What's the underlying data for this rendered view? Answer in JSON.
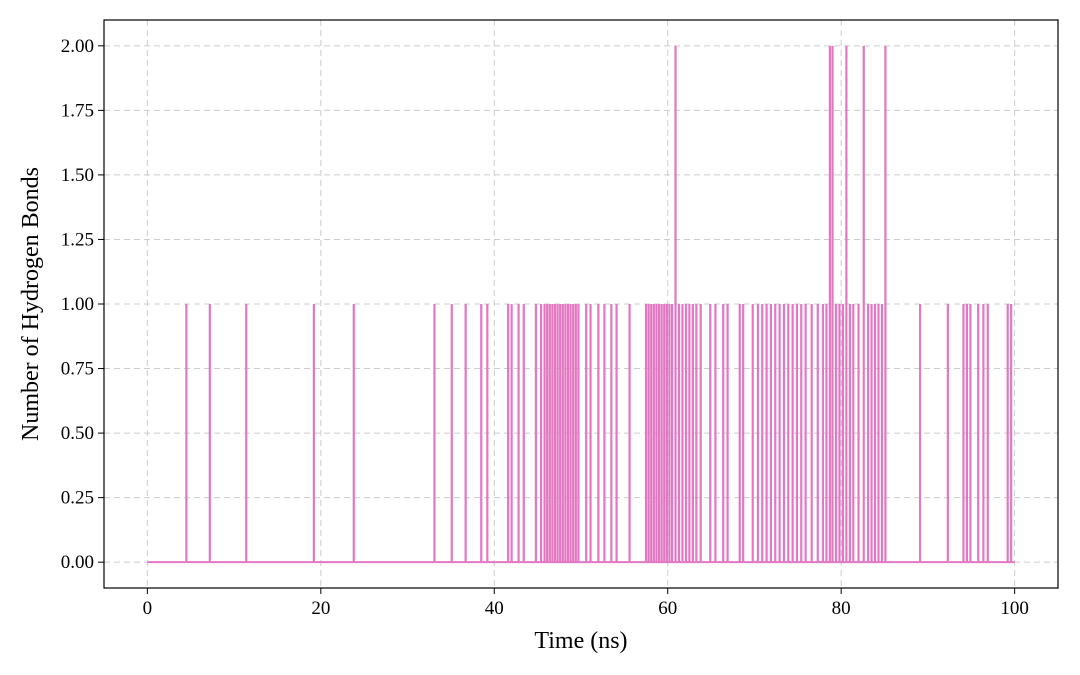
{
  "chart_data": {
    "type": "line",
    "title": "",
    "xlabel": "Time (ns)",
    "ylabel": "Number of Hydrogen Bonds",
    "xlim": [
      -5,
      105
    ],
    "ylim": [
      -0.1,
      2.1
    ],
    "x_ticks": [
      0,
      20,
      40,
      60,
      80,
      100
    ],
    "x_tick_labels": [
      "0",
      "20",
      "40",
      "60",
      "80",
      "100"
    ],
    "y_ticks": [
      0,
      0.25,
      0.5,
      0.75,
      1.0,
      1.25,
      1.5,
      1.75,
      2.0
    ],
    "y_tick_labels": [
      "0.00",
      "0.25",
      "0.50",
      "0.75",
      "1.00",
      "1.25",
      "1.50",
      "1.75",
      "2.00"
    ],
    "grid": true,
    "grid_style": "dashed",
    "line_color": "#e377c2",
    "series": [
      {
        "time_range": [
          0,
          100
        ],
        "baseline": 0,
        "events": [
          {
            "x": 4.5,
            "y": 1
          },
          {
            "x": 7.2,
            "y": 1
          },
          {
            "x": 11.4,
            "y": 1
          },
          {
            "x": 19.2,
            "y": 1
          },
          {
            "x": 23.8,
            "y": 1
          },
          {
            "x": 33.1,
            "y": 1
          },
          {
            "x": 35.1,
            "y": 1
          },
          {
            "x": 36.7,
            "y": 1
          },
          {
            "x": 38.5,
            "y": 1
          },
          {
            "x": 39.2,
            "y": 1
          },
          {
            "x": 41.6,
            "y": 1
          },
          {
            "x": 42.0,
            "y": 1
          },
          {
            "x": 42.8,
            "y": 1
          },
          {
            "x": 43.4,
            "y": 1
          },
          {
            "x": 44.8,
            "y": 1
          },
          {
            "x": 45.4,
            "y": 1
          },
          {
            "x": 45.8,
            "y": 1
          },
          {
            "x": 46.1,
            "y": 1
          },
          {
            "x": 46.4,
            "y": 1
          },
          {
            "x": 46.7,
            "y": 1
          },
          {
            "x": 47.0,
            "y": 1
          },
          {
            "x": 47.3,
            "y": 1
          },
          {
            "x": 47.6,
            "y": 1
          },
          {
            "x": 47.9,
            "y": 1
          },
          {
            "x": 48.2,
            "y": 1
          },
          {
            "x": 48.5,
            "y": 1
          },
          {
            "x": 48.8,
            "y": 1
          },
          {
            "x": 49.1,
            "y": 1
          },
          {
            "x": 49.4,
            "y": 1
          },
          {
            "x": 49.7,
            "y": 1
          },
          {
            "x": 50.6,
            "y": 1
          },
          {
            "x": 51.1,
            "y": 1
          },
          {
            "x": 52.0,
            "y": 1
          },
          {
            "x": 52.7,
            "y": 1
          },
          {
            "x": 53.5,
            "y": 1
          },
          {
            "x": 54.1,
            "y": 1
          },
          {
            "x": 55.6,
            "y": 1
          },
          {
            "x": 57.5,
            "y": 1
          },
          {
            "x": 57.8,
            "y": 1
          },
          {
            "x": 58.1,
            "y": 1
          },
          {
            "x": 58.4,
            "y": 1
          },
          {
            "x": 58.7,
            "y": 1
          },
          {
            "x": 59.0,
            "y": 1
          },
          {
            "x": 59.3,
            "y": 1
          },
          {
            "x": 59.6,
            "y": 1
          },
          {
            "x": 59.9,
            "y": 1
          },
          {
            "x": 60.2,
            "y": 1
          },
          {
            "x": 60.5,
            "y": 1
          },
          {
            "x": 60.9,
            "y": 2
          },
          {
            "x": 61.3,
            "y": 1
          },
          {
            "x": 61.7,
            "y": 1
          },
          {
            "x": 62.1,
            "y": 1
          },
          {
            "x": 62.5,
            "y": 1
          },
          {
            "x": 62.9,
            "y": 1
          },
          {
            "x": 63.3,
            "y": 1
          },
          {
            "x": 63.8,
            "y": 1
          },
          {
            "x": 64.9,
            "y": 1
          },
          {
            "x": 65.5,
            "y": 1
          },
          {
            "x": 66.4,
            "y": 1
          },
          {
            "x": 66.9,
            "y": 1
          },
          {
            "x": 68.3,
            "y": 1
          },
          {
            "x": 68.7,
            "y": 1
          },
          {
            "x": 69.8,
            "y": 1
          },
          {
            "x": 70.4,
            "y": 1
          },
          {
            "x": 70.9,
            "y": 1
          },
          {
            "x": 71.4,
            "y": 1
          },
          {
            "x": 71.9,
            "y": 1
          },
          {
            "x": 72.4,
            "y": 1
          },
          {
            "x": 72.9,
            "y": 1
          },
          {
            "x": 73.4,
            "y": 1
          },
          {
            "x": 73.9,
            "y": 1
          },
          {
            "x": 74.4,
            "y": 1
          },
          {
            "x": 74.9,
            "y": 1
          },
          {
            "x": 75.4,
            "y": 1
          },
          {
            "x": 75.9,
            "y": 1
          },
          {
            "x": 76.6,
            "y": 1
          },
          {
            "x": 77.3,
            "y": 1
          },
          {
            "x": 77.9,
            "y": 1
          },
          {
            "x": 78.3,
            "y": 1
          },
          {
            "x": 78.7,
            "y": 2
          },
          {
            "x": 79.0,
            "y": 2
          },
          {
            "x": 79.4,
            "y": 1
          },
          {
            "x": 79.8,
            "y": 1
          },
          {
            "x": 80.2,
            "y": 1
          },
          {
            "x": 80.6,
            "y": 2
          },
          {
            "x": 81.0,
            "y": 1
          },
          {
            "x": 81.4,
            "y": 1
          },
          {
            "x": 82.0,
            "y": 1
          },
          {
            "x": 82.6,
            "y": 2
          },
          {
            "x": 83.1,
            "y": 1
          },
          {
            "x": 83.5,
            "y": 1
          },
          {
            "x": 83.9,
            "y": 1
          },
          {
            "x": 84.3,
            "y": 1
          },
          {
            "x": 84.7,
            "y": 1
          },
          {
            "x": 85.1,
            "y": 2
          },
          {
            "x": 89.1,
            "y": 1
          },
          {
            "x": 92.3,
            "y": 1
          },
          {
            "x": 94.1,
            "y": 1
          },
          {
            "x": 94.5,
            "y": 1
          },
          {
            "x": 94.9,
            "y": 1
          },
          {
            "x": 95.8,
            "y": 1
          },
          {
            "x": 96.4,
            "y": 1
          },
          {
            "x": 96.9,
            "y": 1
          },
          {
            "x": 99.2,
            "y": 1
          },
          {
            "x": 99.6,
            "y": 1
          }
        ]
      }
    ]
  }
}
